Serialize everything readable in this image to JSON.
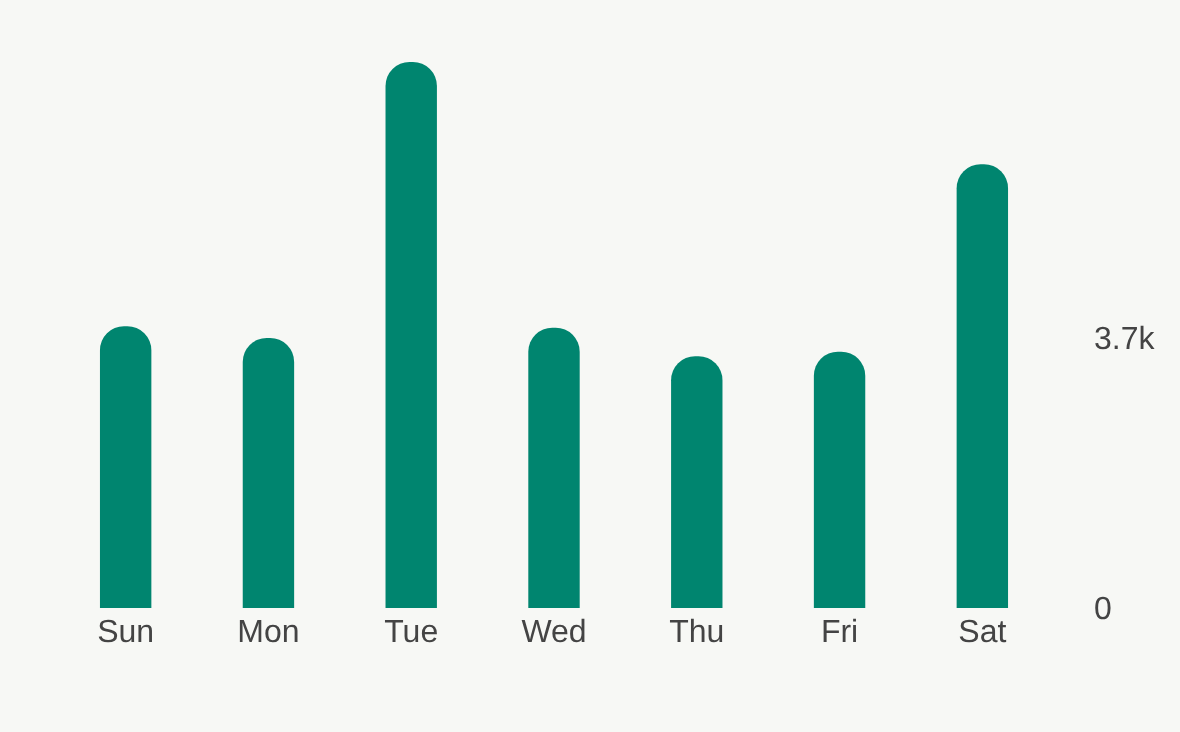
{
  "chart_data": {
    "type": "bar",
    "categories": [
      "Sun",
      "Mon",
      "Tue",
      "Wed",
      "Thu",
      "Fri",
      "Sat"
    ],
    "values": [
      3860,
      3700,
      7480,
      3840,
      3450,
      3510,
      6080
    ],
    "color": "#00856f",
    "ylim": [
      0,
      7480
    ],
    "yticks": [
      0,
      {
        "value": 3700,
        "label": "3.7k"
      }
    ],
    "grid": false,
    "legend": false
  }
}
